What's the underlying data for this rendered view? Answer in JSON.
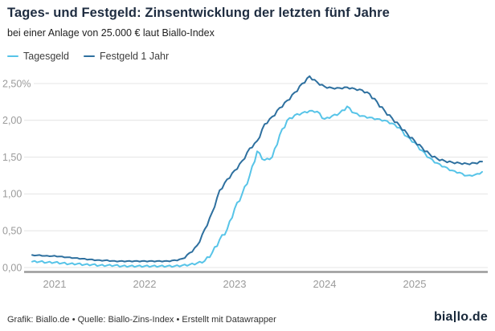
{
  "header": {
    "title": "Tages- und Festgeld: Zinsentwicklung der letzten fünf Jahre",
    "subtitle": "bei einer Anlage von 25.000 € laut Biallo-Index"
  },
  "legend": {
    "items": [
      {
        "label": "Tagesgeld"
      },
      {
        "label": "Festgeld 1 Jahr"
      }
    ]
  },
  "chart_data": {
    "type": "line",
    "title": "Tages- und Festgeld: Zinsentwicklung der letzten fünf Jahre",
    "subtitle": "bei einer Anlage von 25.000 € laut Biallo-Index",
    "unit": "%",
    "frequency": "monthly",
    "start": "2020-10",
    "end": "2025-10",
    "grid": true,
    "legend_position": "top-left",
    "x_axis": {
      "tick_labels": [
        "2021",
        "2022",
        "2023",
        "2024",
        "2025"
      ],
      "tick_years": [
        2021,
        2022,
        2023,
        2024,
        2025
      ]
    },
    "y_axis": {
      "tick_labels": [
        "2,50%",
        "2,00",
        "1,50",
        "1,00",
        "0,50",
        "0,00"
      ],
      "tick_values": [
        2.5,
        2.0,
        1.5,
        1.0,
        0.5,
        0.0
      ],
      "range": [
        0,
        2.65
      ]
    },
    "series": [
      {
        "name": "Tagesgeld",
        "color": "#57c4e8",
        "values": [
          0.08,
          0.08,
          0.07,
          0.07,
          0.06,
          0.05,
          0.05,
          0.04,
          0.04,
          0.03,
          0.03,
          0.03,
          0.02,
          0.02,
          0.02,
          0.02,
          0.02,
          0.02,
          0.02,
          0.02,
          0.03,
          0.04,
          0.06,
          0.09,
          0.2,
          0.38,
          0.52,
          0.8,
          1.0,
          1.25,
          1.58,
          1.46,
          1.5,
          1.8,
          2.0,
          2.07,
          2.1,
          2.13,
          2.12,
          2.02,
          2.06,
          2.1,
          2.19,
          2.1,
          2.06,
          2.04,
          2.02,
          2.0,
          1.96,
          1.9,
          1.78,
          1.7,
          1.59,
          1.49,
          1.42,
          1.37,
          1.32,
          1.29,
          1.25,
          1.26,
          1.3
        ]
      },
      {
        "name": "Festgeld 1 Jahr",
        "color": "#2e709f",
        "values": [
          0.17,
          0.17,
          0.16,
          0.16,
          0.15,
          0.14,
          0.13,
          0.12,
          0.11,
          0.1,
          0.1,
          0.09,
          0.09,
          0.09,
          0.09,
          0.09,
          0.09,
          0.09,
          0.09,
          0.1,
          0.12,
          0.2,
          0.3,
          0.52,
          0.75,
          1.05,
          1.2,
          1.32,
          1.45,
          1.62,
          1.72,
          1.95,
          2.05,
          2.17,
          2.27,
          2.38,
          2.5,
          2.6,
          2.52,
          2.46,
          2.44,
          2.44,
          2.45,
          2.43,
          2.41,
          2.36,
          2.25,
          2.13,
          2.03,
          1.93,
          1.82,
          1.72,
          1.63,
          1.54,
          1.48,
          1.45,
          1.43,
          1.42,
          1.41,
          1.42,
          1.44
        ]
      }
    ]
  },
  "footer": {
    "credit": "Grafik: Biallo.de • Quelle: Biallo-Zins-Index • Erstellt mit Datawrapper",
    "logo": {
      "text": "biallo.de",
      "part1": "bia",
      "part2": "lo.de"
    }
  },
  "colors": {
    "tagesgeld_line": "#57c4e8",
    "festgeld_line": "#2e709f",
    "title_text": "#1e2c40",
    "gridline": "#e4e4e4",
    "axis_line": "#9a9a9a",
    "tick_text": "#9b9b9b"
  }
}
